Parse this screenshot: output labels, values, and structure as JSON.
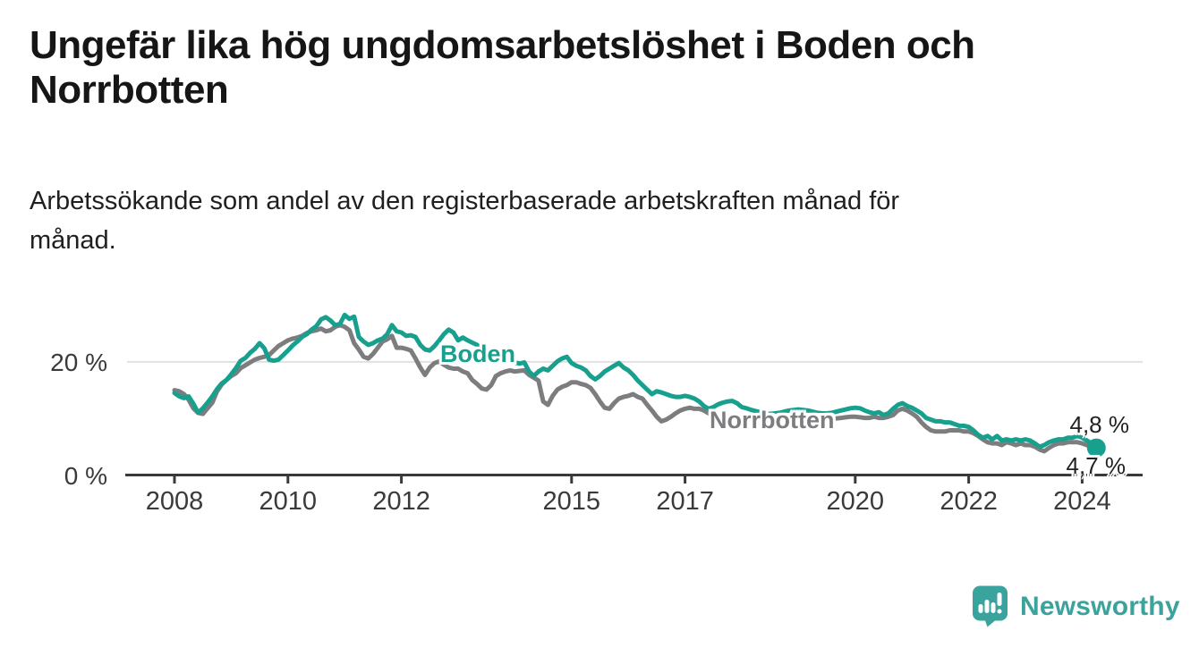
{
  "header": {
    "title_line1": "Ungefär lika hög ungdomsarbetslöshet i Boden och",
    "title_line2": "Norrbotten",
    "subtitle_line1": "Arbetssökande som andel av den registerbaserade arbetskraften månad för",
    "subtitle_line2": "månad."
  },
  "chart_data": {
    "type": "line",
    "title": "Ungefär lika hög ungdomsarbetslöshet i Boden och Norrbotten",
    "subtitle": "Arbetssökande som andel av den registerbaserade arbetskraften månad för månad.",
    "unit": "%",
    "frequency": "monthly",
    "x_start": "2008-01",
    "x_end": "2024-04",
    "x_ticks": [
      2008,
      2010,
      2012,
      2015,
      2017,
      2020,
      2022,
      2024
    ],
    "y_ticks": [
      {
        "value": 20,
        "label": "20 %"
      },
      {
        "value": 0,
        "label": "0 %"
      }
    ],
    "ylim": [
      0,
      30
    ],
    "grid": "y-gridline-at-20-only",
    "legend_position": "inline-labels-on-lines",
    "colors": {
      "boden": "#18a08f",
      "norrbotten": "#7d7d80",
      "axis": "#3a3a3a",
      "gridline": "#e1e1e1"
    },
    "series": [
      {
        "name": "Boden",
        "color": "#18a08f",
        "end_label": "4,8 %",
        "end_value": 4.8,
        "values": [
          14.5,
          13.9,
          13.6,
          13.9,
          12.6,
          11.0,
          11.8,
          12.8,
          13.9,
          15.2,
          16.2,
          16.8,
          17.8,
          18.9,
          20.2,
          20.7,
          21.6,
          22.3,
          23.3,
          22.4,
          20.4,
          20.2,
          20.4,
          21.2,
          22.0,
          22.9,
          23.6,
          24.4,
          24.9,
          25.7,
          26.3,
          27.5,
          27.9,
          27.3,
          26.5,
          26.7,
          28.3,
          27.6,
          28.0,
          24.4,
          23.6,
          23.0,
          23.3,
          23.8,
          24.1,
          24.9,
          26.5,
          25.4,
          25.2,
          24.6,
          24.7,
          24.4,
          23.0,
          22.2,
          22.0,
          22.8,
          23.8,
          24.9,
          25.7,
          25.2,
          23.8,
          24.3,
          23.8,
          23.4,
          23.0,
          22.2,
          21.7,
          21.5,
          21.2,
          20.8,
          20.4,
          20.1,
          19.9,
          19.7,
          19.9,
          18.3,
          17.5,
          18.3,
          18.8,
          18.5,
          19.3,
          20.1,
          20.6,
          20.9,
          19.8,
          19.3,
          19.0,
          18.5,
          17.5,
          16.9,
          17.5,
          18.3,
          18.8,
          19.3,
          19.8,
          19.0,
          18.5,
          17.7,
          16.7,
          15.9,
          15.1,
          14.3,
          14.8,
          14.6,
          14.3,
          14.0,
          13.8,
          13.8,
          14.0,
          13.8,
          13.5,
          13.0,
          12.2,
          11.7,
          12.0,
          12.5,
          12.8,
          13.0,
          13.1,
          12.7,
          12.0,
          11.8,
          11.5,
          11.3,
          11.1,
          10.9,
          10.8,
          10.9,
          11.0,
          11.2,
          11.4,
          11.5,
          11.6,
          11.5,
          11.4,
          11.2,
          11.0,
          10.9,
          10.9,
          11.0,
          11.2,
          11.4,
          11.6,
          11.8,
          11.9,
          11.8,
          11.4,
          11.1,
          10.9,
          11.1,
          10.6,
          10.9,
          11.7,
          12.4,
          12.7,
          12.2,
          11.9,
          11.4,
          10.9,
          10.1,
          9.8,
          9.5,
          9.5,
          9.3,
          9.3,
          9.0,
          8.7,
          8.7,
          8.5,
          7.9,
          7.1,
          6.6,
          6.9,
          6.3,
          6.9,
          6.1,
          6.3,
          6.1,
          6.3,
          6.1,
          6.3,
          6.1,
          5.6,
          5.0,
          5.3,
          5.8,
          6.1,
          6.3,
          6.3,
          6.6,
          6.6,
          6.9,
          6.6,
          6.1,
          5.6,
          4.8
        ]
      },
      {
        "name": "Norrbotten",
        "color": "#7d7d80",
        "end_label": "4,7 %",
        "end_value": 4.7,
        "values": [
          15.0,
          14.8,
          14.3,
          13.3,
          11.8,
          11.0,
          10.8,
          11.8,
          12.8,
          14.8,
          16.0,
          16.8,
          17.5,
          18.0,
          18.9,
          19.4,
          19.9,
          20.4,
          20.7,
          20.9,
          21.2,
          22.0,
          22.8,
          23.3,
          23.8,
          24.1,
          24.3,
          24.6,
          25.1,
          25.4,
          25.6,
          25.9,
          25.4,
          25.6,
          26.2,
          26.5,
          26.2,
          25.6,
          23.3,
          22.2,
          20.9,
          20.6,
          21.4,
          22.5,
          23.6,
          24.0,
          24.6,
          22.5,
          22.5,
          22.3,
          22.0,
          20.6,
          19.0,
          17.7,
          19.0,
          19.8,
          20.1,
          19.5,
          19.0,
          18.8,
          18.8,
          18.3,
          18.0,
          16.8,
          16.1,
          15.3,
          15.1,
          15.9,
          17.5,
          18.0,
          18.3,
          18.5,
          18.3,
          18.4,
          18.5,
          17.7,
          17.2,
          16.7,
          13.0,
          12.4,
          14.0,
          15.1,
          15.6,
          15.9,
          16.4,
          16.4,
          16.1,
          15.9,
          15.4,
          14.3,
          13.0,
          11.9,
          11.7,
          12.7,
          13.5,
          13.8,
          14.0,
          14.3,
          13.8,
          13.5,
          12.4,
          11.4,
          10.3,
          9.5,
          9.8,
          10.3,
          10.9,
          11.4,
          11.7,
          11.9,
          11.7,
          11.7,
          11.4,
          10.9,
          10.3,
          9.8,
          9.1,
          8.9,
          9.2,
          9.5,
          9.8,
          10.0,
          10.1,
          10.0,
          9.8,
          9.6,
          9.5,
          9.6,
          9.8,
          10.0,
          10.1,
          10.2,
          10.3,
          10.2,
          10.1,
          10.0,
          9.9,
          9.8,
          9.8,
          9.9,
          10.0,
          10.1,
          10.2,
          10.3,
          10.3,
          10.2,
          10.1,
          10.1,
          10.3,
          10.1,
          10.1,
          10.3,
          10.6,
          11.4,
          11.7,
          11.4,
          10.9,
          10.3,
          9.3,
          8.5,
          7.9,
          7.7,
          7.7,
          7.7,
          7.9,
          7.9,
          7.9,
          7.7,
          7.7,
          7.4,
          6.9,
          6.3,
          5.8,
          5.6,
          5.6,
          5.3,
          5.8,
          5.6,
          5.3,
          5.6,
          5.3,
          5.3,
          5.0,
          4.5,
          4.2,
          4.8,
          5.3,
          5.6,
          5.6,
          5.8,
          5.8,
          5.8,
          5.6,
          5.3,
          5.0,
          4.7
        ]
      }
    ]
  },
  "branding": {
    "logo_text": "Newsworthy",
    "logo_color": "#3ba29c",
    "logo_icon": "bar-chart-speech-bubble"
  }
}
